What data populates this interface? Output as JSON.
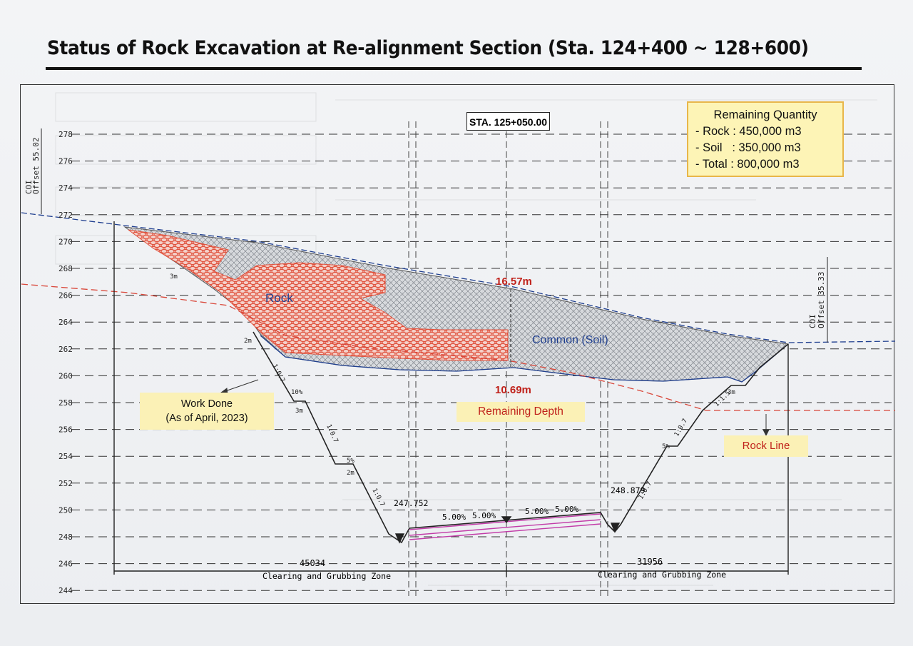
{
  "title": "Status of Rock Excavation at Re-alignment Section (Sta. 124+400 ~ 128+600)",
  "station": "STA. 125+050.00",
  "quantity_box": {
    "heading": "Remaining Quantity",
    "lines": [
      "- Rock : 450,000 m3",
      "- Soil   : 350,000 m3",
      "- Total : 800,000 m3"
    ]
  },
  "labels": {
    "rock": "Rock",
    "soil": "Common (Soil)",
    "depth_top": "16.57m",
    "depth_bottom": "10.69m",
    "remaining_depth": "Remaining Depth",
    "work_done_1": "Work Done",
    "work_done_2": "(As of April, 2023)",
    "rock_line": "Rock Line",
    "left_offset": "COI\nOffset 55.02",
    "right_offset": "COI\nOffset 35.33",
    "left_width": "45034",
    "right_width": "31956",
    "left_zone": "Clearing and Grubbing Zone",
    "right_zone": "Clearing and Grubbing Zone",
    "left_elev": "247.752",
    "right_elev": "248.879",
    "slope_1": "5.00%",
    "slope_2": "5.00%",
    "slope_3": "5.00%",
    "slope_4": "5.00%"
  },
  "elevations": [
    "278",
    "276",
    "274",
    "272",
    "270",
    "268",
    "266",
    "264",
    "262",
    "260",
    "258",
    "256",
    "254",
    "252",
    "250",
    "248",
    "246",
    "244"
  ],
  "colors": {
    "rock_hatch": "#e0513c",
    "soil_hatch": "#8a8f96",
    "design_line": "#1f3f8f",
    "rock_line": "#d9473a",
    "pavement": "#c23ca8",
    "callout_bg": "#fbf1b6",
    "callout_border": "#e8b64a",
    "red_text": "#c0221b"
  }
}
